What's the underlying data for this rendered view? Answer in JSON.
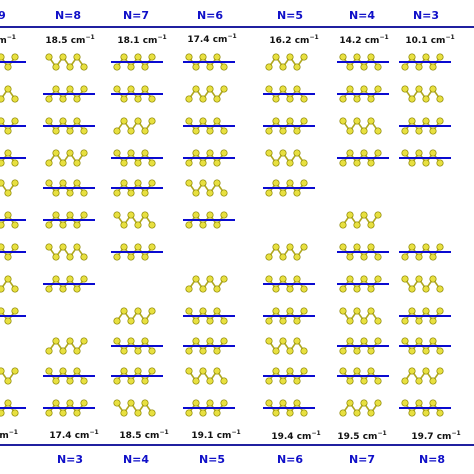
{
  "top_headers": [
    "9",
    "N=8",
    "N=7",
    "N=6",
    "N=5",
    "N=4",
    "N=3"
  ],
  "top_frequencies": [
    {
      "value": "",
      "unit": "cm"
    },
    {
      "value": "18.5",
      "unit": "cm"
    },
    {
      "value": "18.1",
      "unit": "cm"
    },
    {
      "value": "17.4",
      "unit": "cm"
    },
    {
      "value": "16.2",
      "unit": "cm"
    },
    {
      "value": "14.2",
      "unit": "cm"
    },
    {
      "value": "10.1",
      "unit": "cm"
    }
  ],
  "bottom_headers": [
    "N=3",
    "N=4",
    "N=5",
    "N=6",
    "N=7",
    "N=8"
  ],
  "bottom_frequencies": [
    {
      "value": "",
      "unit": "cm"
    },
    {
      "value": "17.4",
      "unit": "cm"
    },
    {
      "value": "18.5",
      "unit": "cm"
    },
    {
      "value": "19.1",
      "unit": "cm"
    },
    {
      "value": "19.4",
      "unit": "cm"
    },
    {
      "value": "19.5",
      "unit": "cm"
    },
    {
      "value": "19.7",
      "unit": "cm"
    }
  ],
  "unit_exponent": "−1",
  "colors": {
    "header": "#1010c8",
    "atom": "#e8e040",
    "atom_edge": "#8a8400",
    "bond": "#b0a820",
    "arrow": "#0a0ad0",
    "rule": "#2020a0"
  },
  "molecule_counts": [
    11,
    11,
    11,
    11,
    11,
    11,
    11
  ]
}
